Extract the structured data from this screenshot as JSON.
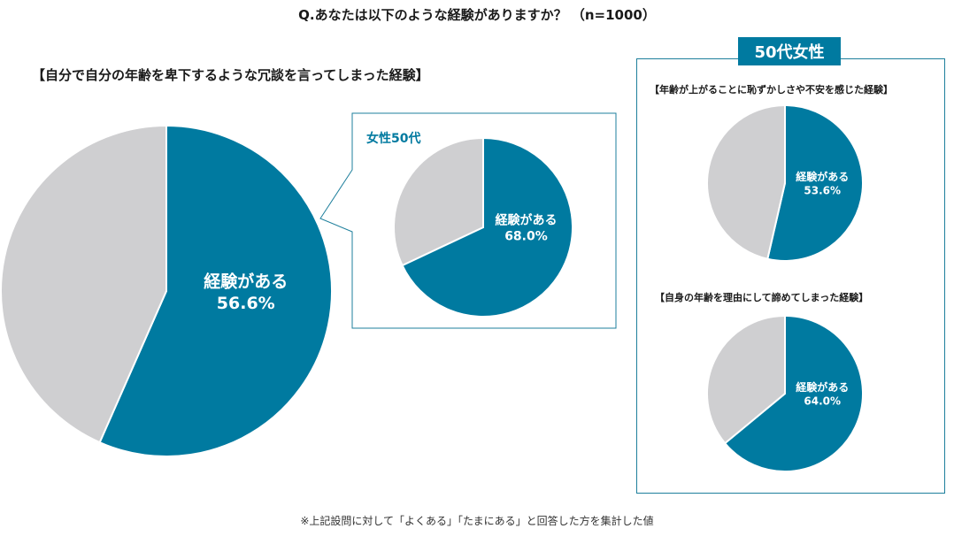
{
  "question_title": "Q.あなたは以下のような経験がありますか？ （n=1000）",
  "colors": {
    "accent": "#007aa0",
    "rest": "#cfcfd1",
    "border": "#1e7f9c"
  },
  "chart_data": [
    {
      "type": "pie",
      "title": "【自分で自分の年齢を卑下するような冗談を言ってしまった経験】",
      "slices": [
        {
          "label": "経験がある",
          "value": 56.6,
          "display": "56.6%"
        },
        {
          "label": "",
          "value": 43.4
        }
      ]
    },
    {
      "type": "pie",
      "title": "女性50代",
      "slices": [
        {
          "label": "経験がある",
          "value": 68.0,
          "display": "68.0%"
        },
        {
          "label": "",
          "value": 32.0
        }
      ]
    },
    {
      "type": "pie",
      "group": "50代女性",
      "title": "【年齢が上がることに恥ずかしさや不安を感じた経験】",
      "slices": [
        {
          "label": "経験がある",
          "value": 53.6,
          "display": "53.6%"
        },
        {
          "label": "",
          "value": 46.4
        }
      ]
    },
    {
      "type": "pie",
      "group": "50代女性",
      "title": "【自身の年齢を理由にして諦めてしまった経験】",
      "slices": [
        {
          "label": "経験がある",
          "value": 64.0,
          "display": "64.0%"
        },
        {
          "label": "",
          "value": 36.0
        }
      ]
    }
  ],
  "panel_badge": "50代女性",
  "footnote": "※上記設問に対して「よくある」「たまにある」と回答した方を集計した値"
}
